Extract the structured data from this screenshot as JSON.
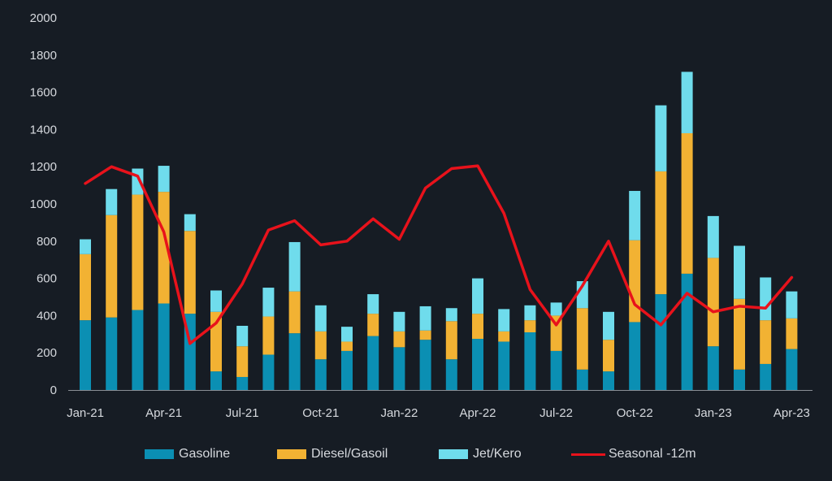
{
  "chart_data": {
    "type": "bar",
    "stacked": true,
    "title": "",
    "xlabel": "",
    "ylabel": "",
    "ylim": [
      0,
      2000
    ],
    "yticks": [
      0,
      200,
      400,
      600,
      800,
      1000,
      1200,
      1400,
      1600,
      1800,
      2000
    ],
    "grid": false,
    "legend_position": "bottom",
    "categories": [
      "Jan-21",
      "Feb-21",
      "Mar-21",
      "Apr-21",
      "May-21",
      "Jun-21",
      "Jul-21",
      "Aug-21",
      "Sep-21",
      "Oct-21",
      "Nov-21",
      "Dec-21",
      "Jan-22",
      "Feb-22",
      "Mar-22",
      "Apr-22",
      "May-22",
      "Jun-22",
      "Jul-22",
      "Aug-22",
      "Sep-22",
      "Oct-22",
      "Nov-22",
      "Dec-22",
      "Jan-23",
      "Feb-23",
      "Mar-23",
      "Apr-23"
    ],
    "xtick_labels": [
      "Jan-21",
      "Apr-21",
      "Jul-21",
      "Oct-21",
      "Jan-22",
      "Apr-22",
      "Jul-22",
      "Oct-22",
      "Jan-23",
      "Apr-23"
    ],
    "series": [
      {
        "name": "Gasoline",
        "color": "#0b8fb3",
        "values": [
          375,
          390,
          430,
          465,
          410,
          100,
          70,
          190,
          305,
          165,
          210,
          290,
          230,
          270,
          165,
          275,
          260,
          310,
          210,
          110,
          100,
          365,
          515,
          625,
          235,
          110,
          140,
          220
        ]
      },
      {
        "name": "Diesel/Gasoil",
        "color": "#f2b233",
        "values": [
          355,
          550,
          620,
          600,
          445,
          320,
          165,
          205,
          225,
          150,
          50,
          120,
          85,
          50,
          205,
          135,
          55,
          65,
          190,
          330,
          170,
          440,
          660,
          755,
          475,
          380,
          235,
          165
        ]
      },
      {
        "name": "Jet/Kero",
        "color": "#6fdcec",
        "values": [
          80,
          140,
          140,
          140,
          90,
          115,
          110,
          155,
          265,
          140,
          80,
          105,
          105,
          130,
          70,
          190,
          120,
          80,
          70,
          145,
          150,
          265,
          355,
          330,
          225,
          285,
          230,
          145
        ]
      }
    ],
    "line_series": {
      "name": "Seasonal -12m",
      "color": "#e8121b",
      "values": [
        1110,
        1200,
        1150,
        850,
        250,
        360,
        570,
        860,
        910,
        780,
        800,
        920,
        810,
        1085,
        1190,
        1205,
        950,
        540,
        350,
        560,
        800,
        460,
        350,
        520,
        420,
        450,
        440,
        605
      ]
    }
  }
}
